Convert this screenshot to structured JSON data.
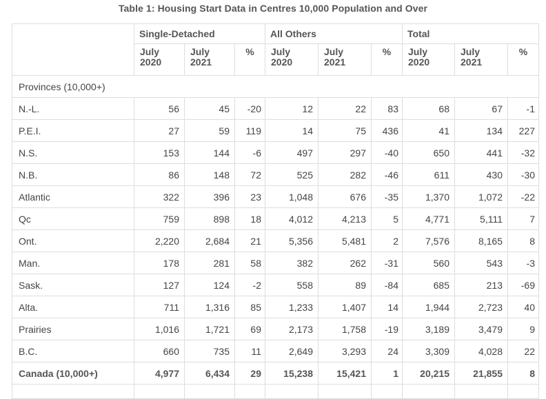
{
  "table": {
    "caption": "Table 1: Housing Start Data in Centres 10,000 Population and Over",
    "groups": [
      "Single-Detached",
      "All Others",
      "Total"
    ],
    "subheaders": [
      [
        "July",
        "2020"
      ],
      [
        "July",
        "2021"
      ],
      [
        "%"
      ],
      [
        "July",
        "2020"
      ],
      [
        "July",
        "2021"
      ],
      [
        "%"
      ],
      [
        "July",
        "2020"
      ],
      [
        "July",
        "2021"
      ],
      [
        "%"
      ]
    ],
    "section_label": "Provinces (10,000+)",
    "rows": [
      {
        "label": "N.-L.",
        "values": [
          "56",
          "45",
          "-20",
          "12",
          "22",
          "83",
          "68",
          "67",
          "-1"
        ]
      },
      {
        "label": "P.E.I.",
        "values": [
          "27",
          "59",
          "119",
          "14",
          "75",
          "436",
          "41",
          "134",
          "227"
        ]
      },
      {
        "label": "N.S.",
        "values": [
          "153",
          "144",
          "-6",
          "497",
          "297",
          "-40",
          "650",
          "441",
          "-32"
        ]
      },
      {
        "label": "N.B.",
        "values": [
          "86",
          "148",
          "72",
          "525",
          "282",
          "-46",
          "611",
          "430",
          "-30"
        ]
      },
      {
        "label": "Atlantic",
        "values": [
          "322",
          "396",
          "23",
          "1,048",
          "676",
          "-35",
          "1,370",
          "1,072",
          "-22"
        ]
      },
      {
        "label": "Qc",
        "values": [
          "759",
          "898",
          "18",
          "4,012",
          "4,213",
          "5",
          "4,771",
          "5,111",
          "7"
        ]
      },
      {
        "label": "Ont.",
        "values": [
          "2,220",
          "2,684",
          "21",
          "5,356",
          "5,481",
          "2",
          "7,576",
          "8,165",
          "8"
        ]
      },
      {
        "label": "Man.",
        "values": [
          "178",
          "281",
          "58",
          "382",
          "262",
          "-31",
          "560",
          "543",
          "-3"
        ]
      },
      {
        "label": "Sask.",
        "values": [
          "127",
          "124",
          "-2",
          "558",
          "89",
          "-84",
          "685",
          "213",
          "-69"
        ]
      },
      {
        "label": "Alta.",
        "values": [
          "711",
          "1,316",
          "85",
          "1,233",
          "1,407",
          "14",
          "1,944",
          "2,723",
          "40"
        ]
      },
      {
        "label": "Prairies",
        "values": [
          "1,016",
          "1,721",
          "69",
          "2,173",
          "1,758",
          "-19",
          "3,189",
          "3,479",
          "9"
        ]
      },
      {
        "label": "B.C.",
        "values": [
          "660",
          "735",
          "11",
          "2,649",
          "3,293",
          "24",
          "3,309",
          "4,028",
          "22"
        ]
      },
      {
        "label": "Canada (10,000+)",
        "values": [
          "4,977",
          "6,434",
          "29",
          "15,238",
          "15,421",
          "1",
          "20,215",
          "21,855",
          "8"
        ],
        "total": true
      }
    ]
  }
}
